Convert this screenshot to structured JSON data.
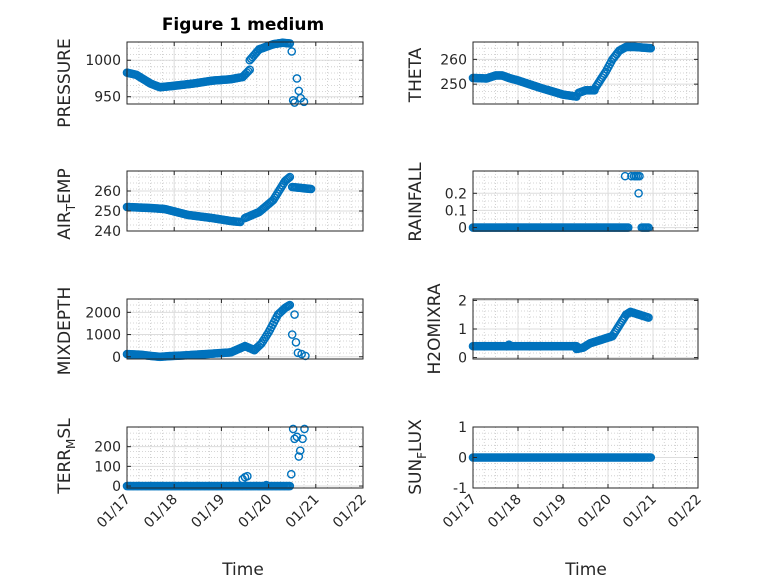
{
  "figure": {
    "title": "Figure 1 medium",
    "marker_color": "#0072BD",
    "grid": "minor-dotted"
  },
  "chart_data": [
    {
      "type": "scatter",
      "title": "Figure 1 medium",
      "ylabel": "PRESSURE",
      "xlabel": "",
      "xlim": [
        17,
        22
      ],
      "ylim": [
        940,
        1025
      ],
      "yticks": [
        950,
        1000
      ],
      "segments": [
        {
          "x": [
            17.0,
            17.2,
            17.5,
            17.7,
            18.0,
            18.4,
            18.8,
            19.2,
            19.45
          ],
          "y": [
            983,
            980,
            968,
            963,
            965,
            968,
            972,
            974,
            977
          ]
        },
        {
          "x": [
            19.45,
            19.6
          ],
          "y": [
            977,
            987
          ]
        },
        {
          "x": [
            19.6,
            19.8,
            20.1,
            20.3,
            20.45
          ],
          "y": [
            1000,
            1015,
            1022,
            1024,
            1023
          ]
        }
      ],
      "points": [
        {
          "x": 20.49,
          "y": 1012
        },
        {
          "x": 20.52,
          "y": 945
        },
        {
          "x": 20.55,
          "y": 942
        },
        {
          "x": 20.6,
          "y": 975
        },
        {
          "x": 20.64,
          "y": 958
        },
        {
          "x": 20.68,
          "y": 948
        },
        {
          "x": 20.75,
          "y": 943
        }
      ]
    },
    {
      "type": "scatter",
      "ylabel": "THETA",
      "xlabel": "",
      "xlim": [
        17,
        22
      ],
      "ylim": [
        242,
        267
      ],
      "yticks": [
        250,
        260
      ],
      "segments": [
        {
          "x": [
            17.0,
            17.3,
            17.5,
            17.65,
            17.8,
            18.0,
            18.5,
            19.0,
            19.3
          ],
          "y": [
            252.5,
            252.3,
            253.5,
            253.5,
            252.5,
            251.5,
            248.5,
            245.8,
            245.0
          ]
        },
        {
          "x": [
            19.35,
            19.5,
            19.7
          ],
          "y": [
            246.5,
            247.5,
            247.5
          ]
        },
        {
          "x": [
            19.7,
            19.95,
            20.1,
            20.25,
            20.4,
            20.6,
            20.95
          ],
          "y": [
            248,
            255,
            260,
            263.5,
            265,
            265,
            264.5
          ]
        }
      ],
      "points": []
    },
    {
      "type": "scatter",
      "ylabel": "AIR_TEMP",
      "xlabel": "",
      "xlim": [
        17,
        22
      ],
      "ylim": [
        240,
        270
      ],
      "yticks": [
        240,
        250,
        260
      ],
      "segments": [
        {
          "x": [
            17.0,
            17.5,
            17.8,
            18.3,
            18.8,
            19.2,
            19.4
          ],
          "y": [
            252,
            251.5,
            251,
            248,
            246.5,
            245,
            244.5
          ]
        },
        {
          "x": [
            19.5,
            19.8,
            20.1,
            20.35,
            20.45
          ],
          "y": [
            246.5,
            249.5,
            255.5,
            265,
            267
          ]
        },
        {
          "x": [
            20.5,
            20.9
          ],
          "y": [
            262,
            261
          ]
        }
      ],
      "points": []
    },
    {
      "type": "scatter",
      "ylabel": "RAINFALL",
      "xlabel": "",
      "xlim": [
        17,
        22
      ],
      "ylim": [
        -0.02,
        0.33
      ],
      "yticks": [
        0,
        0.1,
        0.2
      ],
      "segments": [
        {
          "x": [
            17.0,
            20.45
          ],
          "y": [
            0,
            0
          ]
        },
        {
          "x": [
            20.75,
            20.9
          ],
          "y": [
            0,
            0
          ]
        }
      ],
      "points": [
        {
          "x": 20.38,
          "y": 0.3
        },
        {
          "x": 20.52,
          "y": 0.3
        },
        {
          "x": 20.58,
          "y": 0.3
        },
        {
          "x": 20.62,
          "y": 0.3
        },
        {
          "x": 20.66,
          "y": 0.3
        },
        {
          "x": 20.7,
          "y": 0.3
        },
        {
          "x": 20.68,
          "y": 0.2
        }
      ]
    },
    {
      "type": "scatter",
      "ylabel": "MIXDEPTH",
      "xlabel": "",
      "xlim": [
        17,
        22
      ],
      "ylim": [
        -100,
        2600
      ],
      "yticks": [
        0,
        1000,
        2000
      ],
      "segments": [
        {
          "x": [
            17.0,
            17.3,
            17.5,
            17.7,
            17.9,
            18.2,
            18.5,
            18.8,
            19.2,
            19.5,
            19.7
          ],
          "y": [
            120,
            90,
            40,
            0,
            30,
            60,
            100,
            140,
            200,
            480,
            300
          ]
        },
        {
          "x": [
            19.7,
            19.85,
            20.0,
            20.2,
            20.35,
            20.45
          ],
          "y": [
            300,
            600,
            1100,
            1900,
            2200,
            2330
          ]
        }
      ],
      "points": [
        {
          "x": 20.5,
          "y": 1000
        },
        {
          "x": 20.55,
          "y": 1900
        },
        {
          "x": 20.58,
          "y": 650
        },
        {
          "x": 20.62,
          "y": 180
        },
        {
          "x": 20.7,
          "y": 120
        },
        {
          "x": 20.78,
          "y": 40
        }
      ]
    },
    {
      "type": "scatter",
      "ylabel": "H2OMIXRA",
      "xlabel": "",
      "xlim": [
        17,
        22
      ],
      "ylim": [
        -0.05,
        2.05
      ],
      "yticks": [
        0,
        1,
        2
      ],
      "segments": [
        {
          "x": [
            17.0,
            19.3
          ],
          "y": [
            0.4,
            0.4
          ]
        },
        {
          "x": [
            19.3,
            19.45,
            19.6,
            19.8,
            20.1,
            20.4,
            20.5,
            20.9
          ],
          "y": [
            0.3,
            0.35,
            0.5,
            0.6,
            0.75,
            1.5,
            1.6,
            1.4
          ]
        }
      ],
      "points": [
        {
          "x": 17.8,
          "y": 0.45
        }
      ]
    },
    {
      "type": "scatter",
      "ylabel": "TERR_MSL",
      "xlabel": "Time",
      "xlim": [
        17,
        22
      ],
      "ylim": [
        -10,
        300
      ],
      "yticks": [
        0,
        100,
        200
      ],
      "xticks": [
        "01/17",
        "01/18",
        "01/19",
        "01/20",
        "01/21",
        "01/22"
      ],
      "segments": [
        {
          "x": [
            17.0,
            20.45
          ],
          "y": [
            0,
            0
          ]
        }
      ],
      "points": [
        {
          "x": 19.45,
          "y": 35
        },
        {
          "x": 19.5,
          "y": 45
        },
        {
          "x": 19.55,
          "y": 50
        },
        {
          "x": 19.95,
          "y": 5
        },
        {
          "x": 20.48,
          "y": 60
        },
        {
          "x": 20.52,
          "y": 290
        },
        {
          "x": 20.55,
          "y": 240
        },
        {
          "x": 20.6,
          "y": 250
        },
        {
          "x": 20.64,
          "y": 150
        },
        {
          "x": 20.67,
          "y": 180
        },
        {
          "x": 20.72,
          "y": 240
        },
        {
          "x": 20.76,
          "y": 290
        }
      ]
    },
    {
      "type": "scatter",
      "ylabel": "SUN_FLUX",
      "xlabel": "Time",
      "xlim": [
        17,
        22
      ],
      "ylim": [
        -1,
        1
      ],
      "yticks": [
        -1,
        0,
        1
      ],
      "xticks": [
        "01/17",
        "01/18",
        "01/19",
        "01/20",
        "01/21",
        "01/22"
      ],
      "segments": [
        {
          "x": [
            17.0,
            20.95
          ],
          "y": [
            0,
            0
          ]
        }
      ],
      "points": []
    }
  ]
}
